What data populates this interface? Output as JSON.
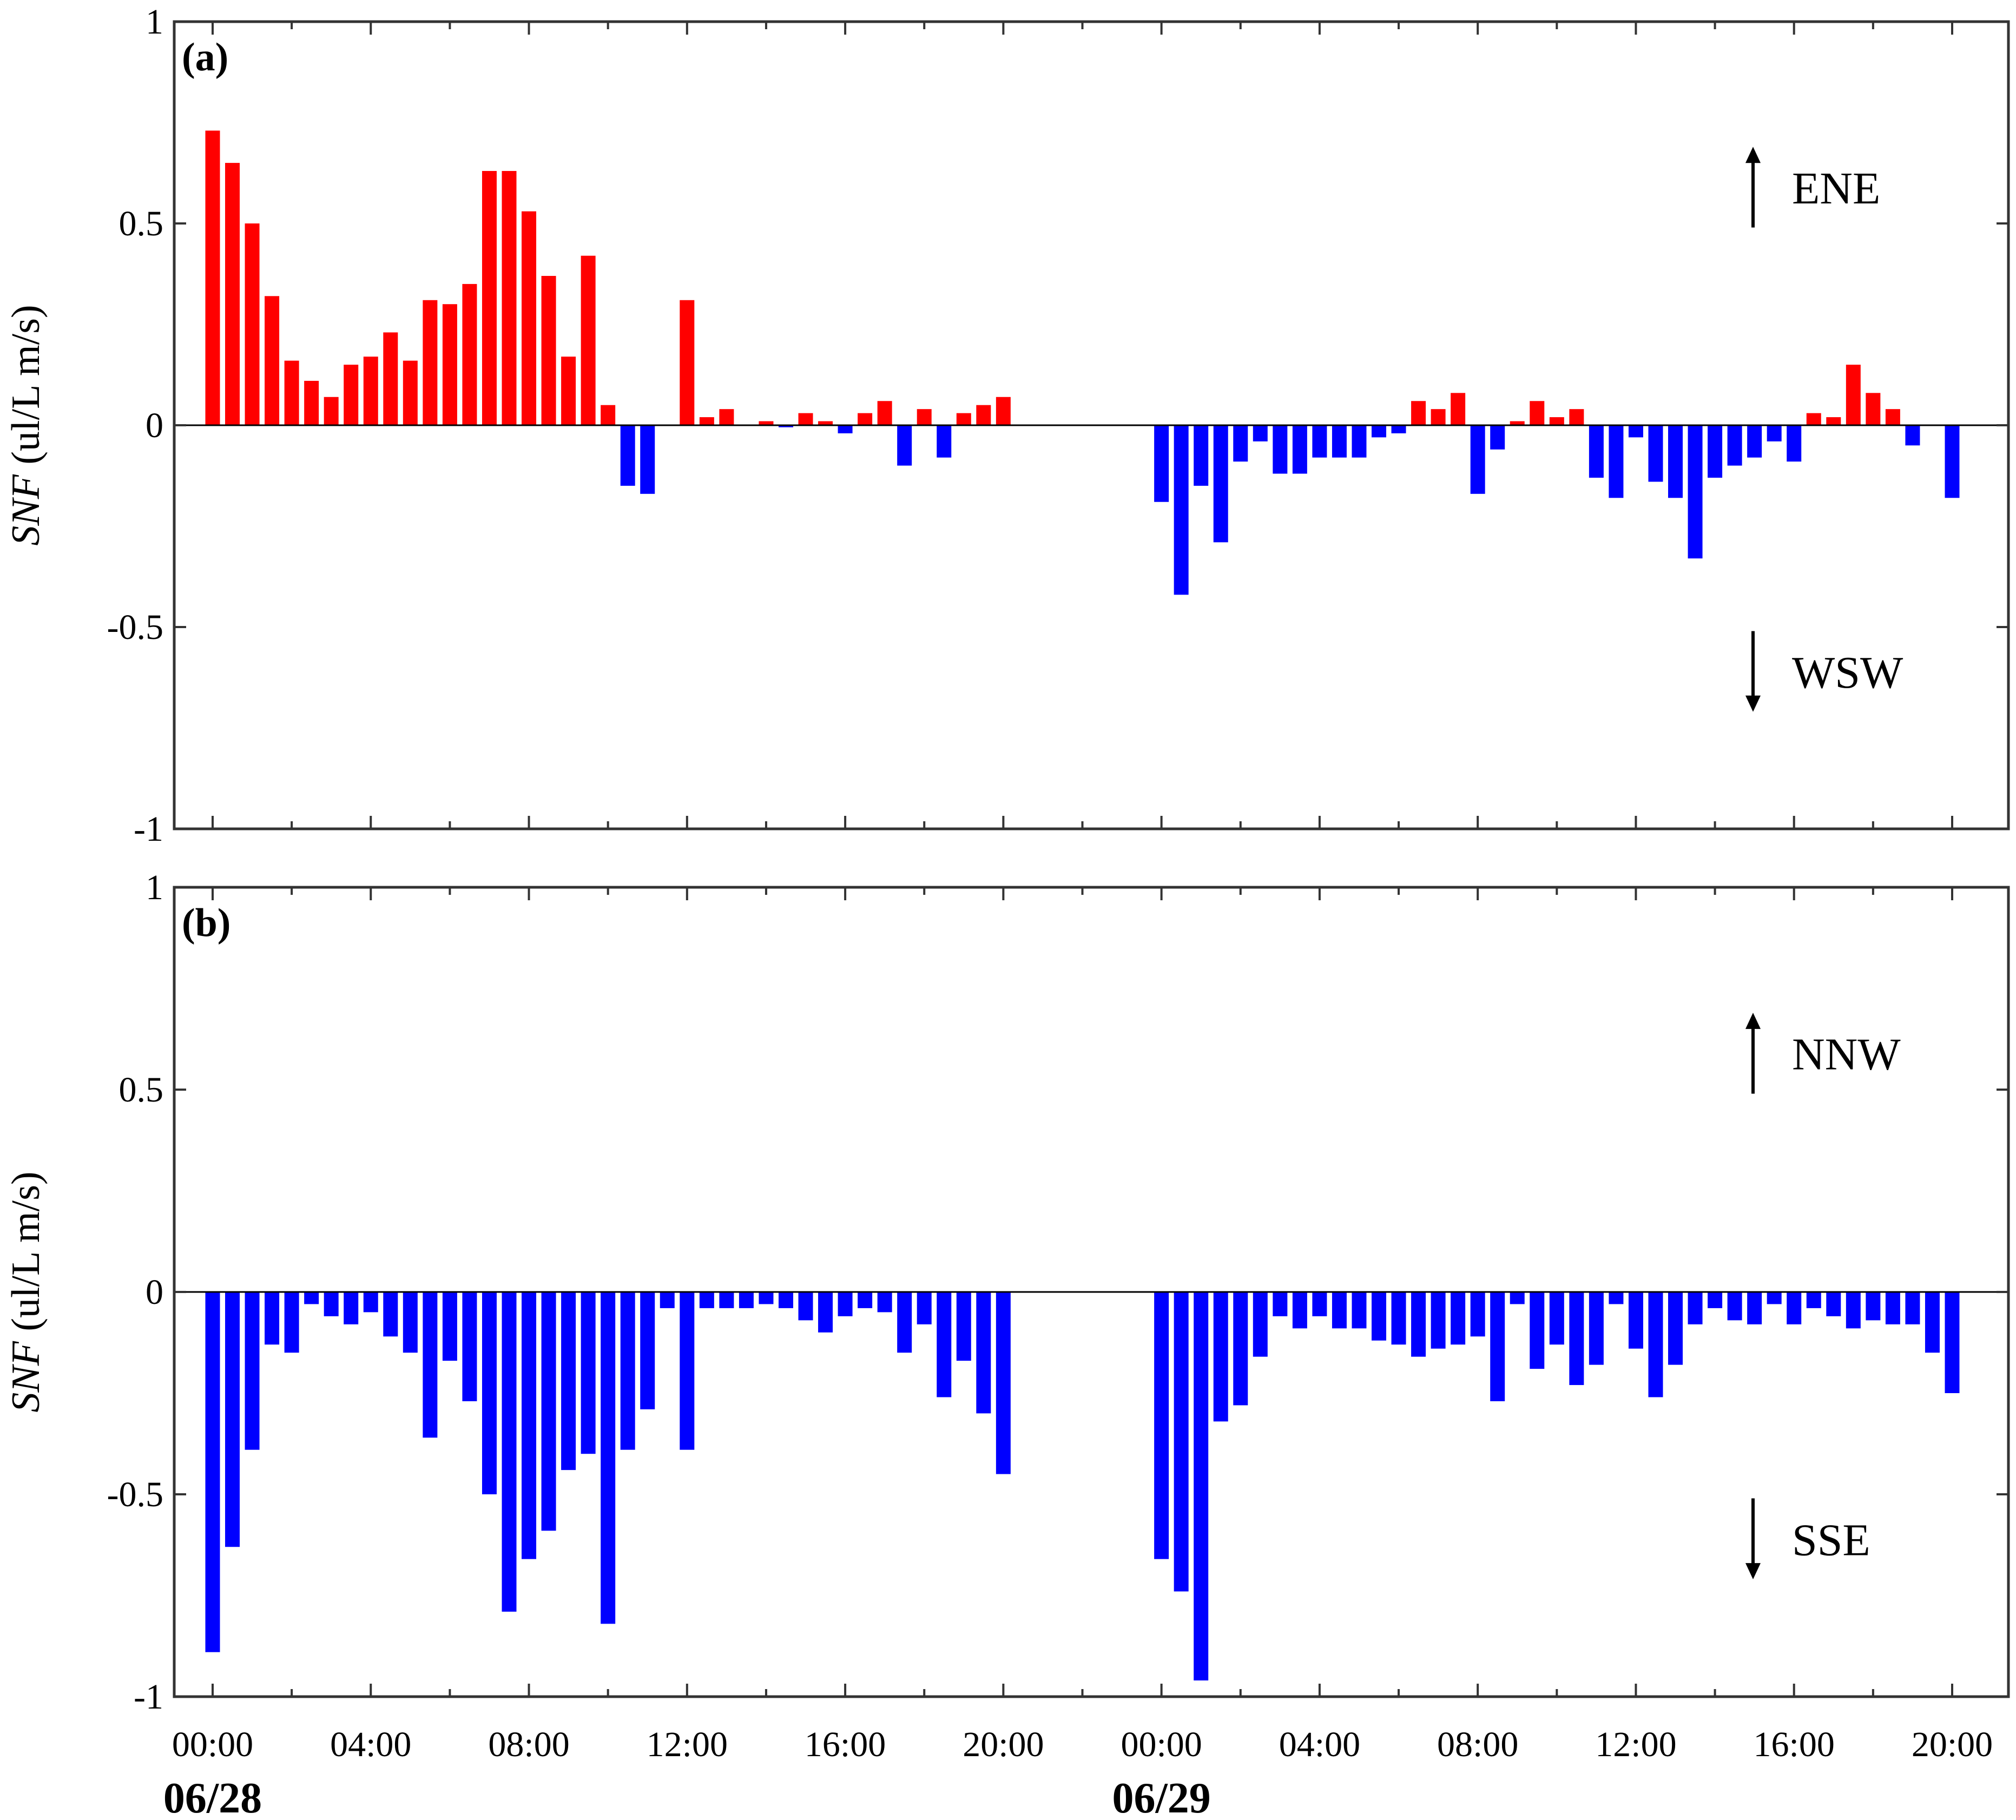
{
  "chart_data": [
    {
      "type": "bar",
      "panel_label": "(a)",
      "ylabel_italic": "SNF",
      "ylabel_rest": " (ul/L m/s)",
      "ylim": [
        -1,
        1
      ],
      "yticks": [
        "1",
        "0.5",
        "0",
        "-0.5",
        "-1"
      ],
      "ytick_values": [
        1,
        0.5,
        0,
        -0.5,
        -1
      ],
      "xtick_labels": [
        "00:00",
        "04:00",
        "08:00",
        "12:00",
        "16:00",
        "20:00",
        "00:00",
        "04:00",
        "08:00",
        "12:00",
        "16:00",
        "20:00"
      ],
      "xtick_hours": [
        0,
        4,
        8,
        12,
        16,
        20,
        24,
        28,
        32,
        36,
        40,
        44
      ],
      "date_labels": [
        {
          "text": "06/28",
          "hour": 0
        },
        {
          "text": "06/29",
          "hour": 24
        }
      ],
      "direction_up": "ENE",
      "direction_down": "WSW",
      "positive_color": "#ff0000",
      "negative_color": "#0000ff",
      "bar_interval_hours": 0.5,
      "day1_values": [
        0.73,
        0.65,
        0.5,
        0.32,
        0.16,
        0.11,
        0.07,
        0.15,
        0.17,
        0.23,
        0.16,
        0.31,
        0.3,
        0.35,
        0.63,
        0.63,
        0.53,
        0.37,
        0.17,
        0.42,
        0.05,
        -0.15,
        -0.17,
        null,
        0.31,
        0.02,
        0.04,
        0,
        0.01,
        -0.005,
        0.03,
        0.01,
        -0.02,
        0.03,
        0.06,
        -0.1,
        0.04,
        -0.08,
        0.03,
        0.05,
        0.07
      ],
      "day2_values": [
        -0.19,
        -0.42,
        -0.15,
        -0.29,
        -0.09,
        -0.04,
        -0.12,
        -0.12,
        -0.08,
        -0.08,
        -0.08,
        -0.03,
        -0.02,
        0.06,
        0.04,
        0.08,
        -0.17,
        -0.06,
        0.01,
        0.06,
        0.02,
        0.04,
        -0.13,
        -0.18,
        -0.03,
        -0.14,
        -0.18,
        -0.33,
        -0.13,
        -0.1,
        -0.08,
        -0.04,
        -0.09,
        0.03,
        0.02,
        0.15,
        0.08,
        0.04,
        -0.05,
        null,
        -0.18
      ]
    },
    {
      "type": "bar",
      "panel_label": "(b)",
      "ylabel_italic": "SNF",
      "ylabel_rest": " (ul/L m/s)",
      "ylim": [
        -1,
        1
      ],
      "yticks": [
        "1",
        "0.5",
        "0",
        "-0.5",
        "-1"
      ],
      "ytick_values": [
        1,
        0.5,
        0,
        -0.5,
        -1
      ],
      "xtick_labels": [
        "00:00",
        "04:00",
        "08:00",
        "12:00",
        "16:00",
        "20:00",
        "00:00",
        "04:00",
        "08:00",
        "12:00",
        "16:00",
        "20:00"
      ],
      "xtick_hours": [
        0,
        4,
        8,
        12,
        16,
        20,
        24,
        28,
        32,
        36,
        40,
        44
      ],
      "date_labels": [
        {
          "text": "06/28",
          "hour": 0
        },
        {
          "text": "06/29",
          "hour": 24
        }
      ],
      "direction_up": "NNW",
      "direction_down": "SSE",
      "positive_color": "#0000ff",
      "negative_color": "#0000ff",
      "bar_interval_hours": 0.5,
      "day1_values": [
        -0.89,
        -0.63,
        -0.39,
        -0.13,
        -0.15,
        -0.03,
        -0.06,
        -0.08,
        -0.05,
        -0.11,
        -0.15,
        -0.36,
        -0.17,
        -0.27,
        -0.5,
        -0.79,
        -0.66,
        -0.59,
        -0.44,
        -0.4,
        -0.82,
        -0.39,
        -0.29,
        -0.04,
        -0.39,
        -0.04,
        -0.04,
        -0.04,
        -0.03,
        -0.04,
        -0.07,
        -0.1,
        -0.06,
        -0.04,
        -0.05,
        -0.15,
        -0.08,
        -0.26,
        -0.17,
        -0.3,
        -0.45
      ],
      "day2_values": [
        -0.66,
        -0.74,
        -0.96,
        -0.32,
        -0.28,
        -0.16,
        -0.06,
        -0.09,
        -0.06,
        -0.09,
        -0.09,
        -0.12,
        -0.13,
        -0.16,
        -0.14,
        -0.13,
        -0.11,
        -0.27,
        -0.03,
        -0.19,
        -0.13,
        -0.23,
        -0.18,
        -0.03,
        -0.14,
        -0.26,
        -0.18,
        -0.08,
        -0.04,
        -0.07,
        -0.08,
        -0.03,
        -0.08,
        -0.04,
        -0.06,
        -0.09,
        -0.07,
        -0.08,
        -0.08,
        -0.15,
        -0.25
      ]
    }
  ]
}
